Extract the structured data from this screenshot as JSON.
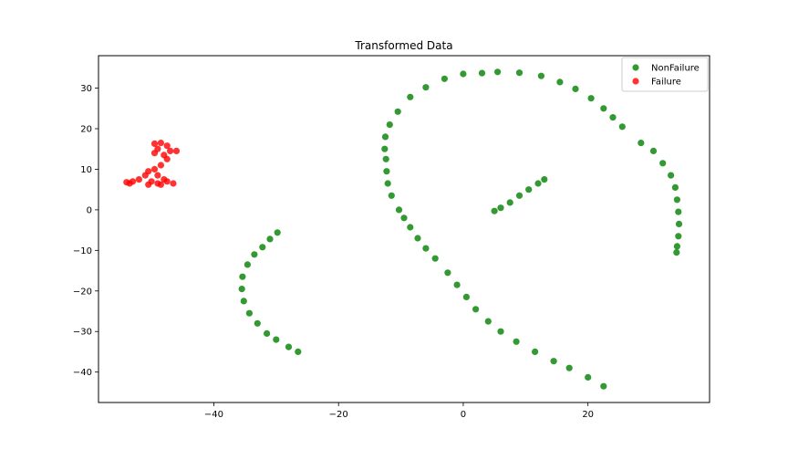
{
  "chart_data": {
    "type": "scatter",
    "title": "Transformed Data",
    "xlabel": "",
    "ylabel": "",
    "xlim": [
      -58.5,
      39.5
    ],
    "ylim": [
      -47.5,
      38
    ],
    "x_ticks": [
      -40,
      -20,
      0,
      20
    ],
    "y_ticks": [
      -40,
      -30,
      -20,
      -10,
      0,
      10,
      20,
      30
    ],
    "grid": false,
    "legend_position": "top-right",
    "series": [
      {
        "name": "NonFailure",
        "color": "#008000",
        "points": [
          [
            5.5,
            34
          ],
          [
            3,
            33.7
          ],
          [
            0,
            33.5
          ],
          [
            -3,
            32.3
          ],
          [
            -6,
            30.2
          ],
          [
            -8.5,
            27.8
          ],
          [
            -10.5,
            24.2
          ],
          [
            -11.8,
            21
          ],
          [
            -12.5,
            18
          ],
          [
            -12.6,
            15
          ],
          [
            -12.4,
            12.5
          ],
          [
            -12.3,
            9.5
          ],
          [
            -12.1,
            6.5
          ],
          [
            -11.5,
            3.5
          ],
          [
            -10.3,
            0
          ],
          [
            -9.5,
            -2
          ],
          [
            -8.5,
            -4.3
          ],
          [
            -7.3,
            -7
          ],
          [
            -6,
            -9.5
          ],
          [
            -4.5,
            -12
          ],
          [
            -2.5,
            -15.5
          ],
          [
            -1,
            -18.5
          ],
          [
            0.5,
            -21.5
          ],
          [
            2,
            -24.5
          ],
          [
            4,
            -27.5
          ],
          [
            6,
            -30
          ],
          [
            8.5,
            -32.5
          ],
          [
            11.5,
            -35
          ],
          [
            14.5,
            -37.3
          ],
          [
            17,
            -39
          ],
          [
            20,
            -41.3
          ],
          [
            22.5,
            -43.5
          ],
          [
            9,
            33.8
          ],
          [
            12.5,
            33
          ],
          [
            15.5,
            31.5
          ],
          [
            18,
            29.8
          ],
          [
            20.5,
            27.5
          ],
          [
            22.5,
            25
          ],
          [
            24,
            22.8
          ],
          [
            25.5,
            20.5
          ],
          [
            28.5,
            16.5
          ],
          [
            30.5,
            14.5
          ],
          [
            32,
            11.5
          ],
          [
            33.3,
            8.5
          ],
          [
            34,
            5.5
          ],
          [
            34.3,
            2.5
          ],
          [
            34.5,
            -0.5
          ],
          [
            34.6,
            -3.5
          ],
          [
            34.5,
            -6.5
          ],
          [
            34.3,
            -9
          ],
          [
            34.2,
            -10.5
          ],
          [
            -26.5,
            -35
          ],
          [
            -28,
            -33.8
          ],
          [
            -30,
            -32
          ],
          [
            -31.5,
            -30.5
          ],
          [
            -33,
            -28
          ],
          [
            -34.3,
            -25.5
          ],
          [
            -35.2,
            -22.5
          ],
          [
            -35.5,
            -19.5
          ],
          [
            -35.4,
            -16.5
          ],
          [
            -34.6,
            -13.5
          ],
          [
            -33.5,
            -11
          ],
          [
            -32.2,
            -9.2
          ],
          [
            -31,
            -7.2
          ],
          [
            -29.8,
            -5.6
          ],
          [
            5,
            -0.3
          ],
          [
            6,
            0.5
          ],
          [
            7.5,
            1.8
          ],
          [
            9,
            3.5
          ],
          [
            10.5,
            5
          ],
          [
            12,
            6.5
          ],
          [
            13,
            7.5
          ]
        ]
      },
      {
        "name": "Failure",
        "color": "#ff0000",
        "points": [
          [
            -49.5,
            16.3
          ],
          [
            -48.5,
            16.5
          ],
          [
            -47.5,
            15.8
          ],
          [
            -49,
            15
          ],
          [
            -47,
            14.5
          ],
          [
            -46,
            14.5
          ],
          [
            -48,
            13.5
          ],
          [
            -47.5,
            12.5
          ],
          [
            -49.5,
            14
          ],
          [
            -48.5,
            11
          ],
          [
            -49.5,
            10
          ],
          [
            -50.5,
            9.5
          ],
          [
            -51,
            8.5
          ],
          [
            -49,
            8.5
          ],
          [
            -48,
            7.5
          ],
          [
            -50,
            7
          ],
          [
            -49,
            6.5
          ],
          [
            -47.5,
            7
          ],
          [
            -46.5,
            6.5
          ],
          [
            -52,
            7.5
          ],
          [
            -53,
            7
          ],
          [
            -54,
            6.8
          ],
          [
            -53.5,
            6.5
          ],
          [
            -50.5,
            6.2
          ],
          [
            -48.5,
            6.2
          ]
        ]
      }
    ]
  }
}
